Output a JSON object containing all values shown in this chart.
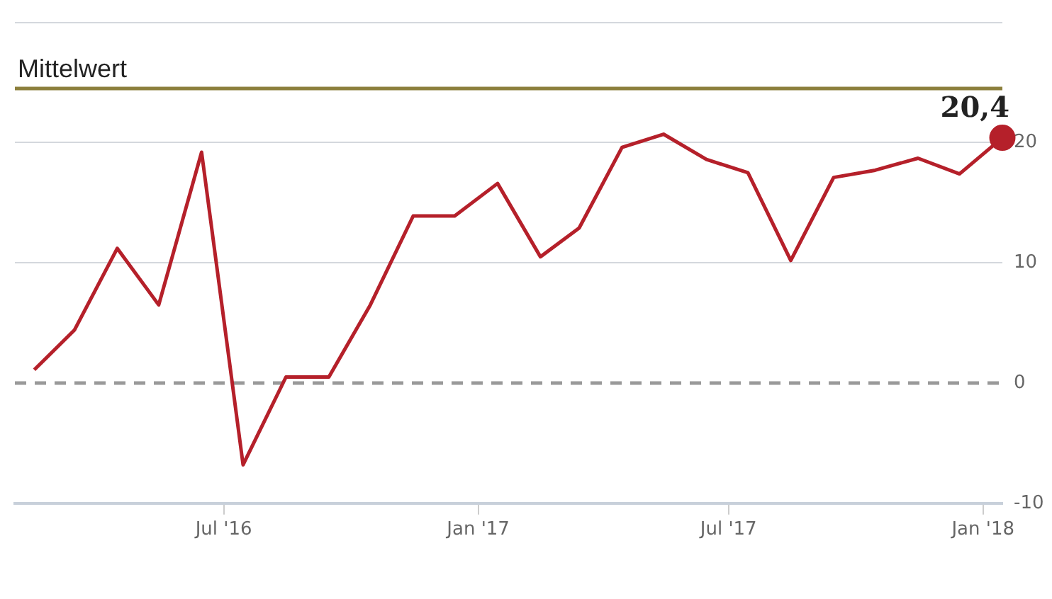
{
  "chart_data": {
    "type": "line",
    "x": [
      "2016-02-15",
      "2016-03-15",
      "2016-04-15",
      "2016-05-15",
      "2016-06-15",
      "2016-07-15",
      "2016-08-15",
      "2016-09-15",
      "2016-10-15",
      "2016-11-15",
      "2016-12-15",
      "2017-01-15",
      "2017-02-15",
      "2017-03-15",
      "2017-04-15",
      "2017-05-15",
      "2017-06-15",
      "2017-07-15",
      "2017-08-15",
      "2017-09-15",
      "2017-10-15",
      "2017-11-15",
      "2017-12-15",
      "2018-01-15"
    ],
    "series": [
      {
        "color": "#b5202a",
        "values": [
          1.1,
          4.4,
          11.2,
          6.5,
          19.2,
          -6.8,
          0.5,
          0.5,
          6.5,
          13.9,
          13.9,
          16.6,
          10.5,
          12.9,
          19.6,
          20.7,
          18.6,
          17.5,
          10.2,
          17.1,
          17.7,
          18.7,
          17.4,
          20.4
        ],
        "value_labels": [
          null,
          null,
          null,
          null,
          null,
          null,
          null,
          null,
          null,
          null,
          null,
          null,
          null,
          null,
          null,
          null,
          null,
          null,
          null,
          null,
          null,
          null,
          null,
          "20,4"
        ]
      }
    ],
    "xlim": [
      "2016-02-01",
      "2018-01-15"
    ],
    "xticks": [
      {
        "value": "2016-07-01",
        "label": "Jul '16"
      },
      {
        "value": "2017-01-01",
        "label": "Jan '17"
      },
      {
        "value": "2017-07-01",
        "label": "Jul '17"
      },
      {
        "value": "2018-01-01",
        "label": "Jan '18"
      }
    ],
    "ylim": [
      -10,
      30
    ],
    "yticks": [
      -10,
      0,
      10,
      20,
      {
        "value": 30,
        "label": null
      }
    ],
    "grid": "y",
    "legend": false,
    "marker": "none",
    "line_style": "solid",
    "ref_lines": [
      {
        "axis": "y",
        "value": 0,
        "color": "#999999",
        "line_style": "dashed"
      },
      {
        "axis": "y",
        "value": 24.5,
        "label": "Mittelwert",
        "color": "#8c7f3c",
        "line_style": "solid"
      }
    ]
  }
}
